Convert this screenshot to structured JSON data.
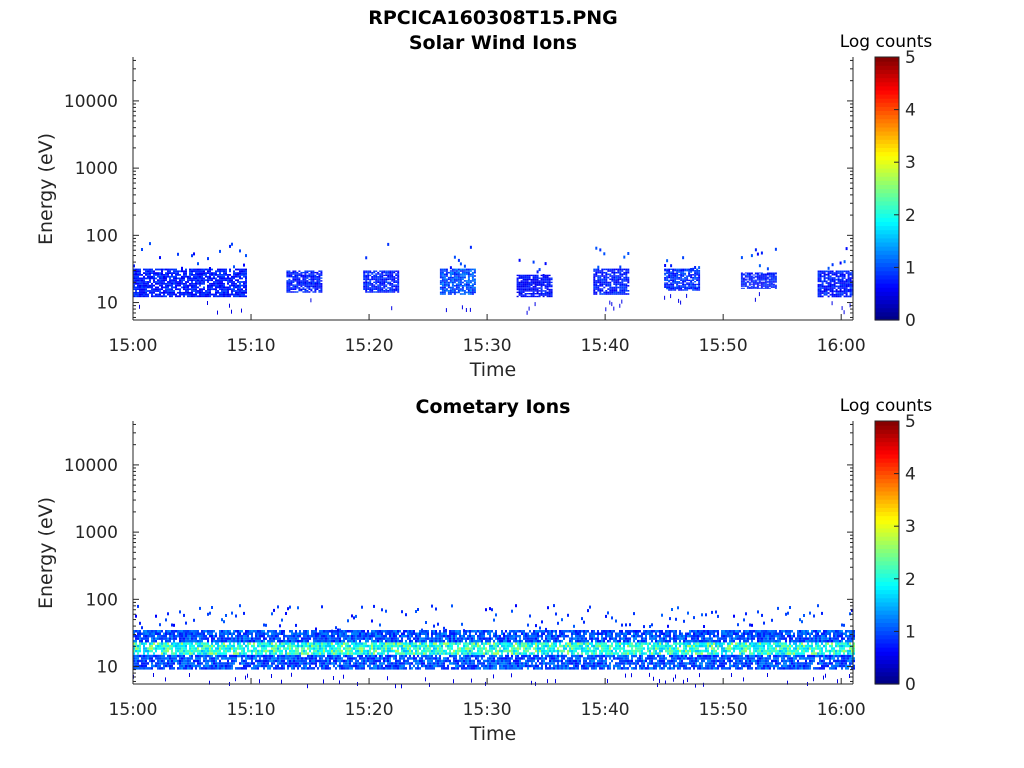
{
  "figure_title": "RPCICA160308T15.PNG",
  "chart_data": [
    {
      "type": "heatmap",
      "title": "Solar Wind Ions",
      "xlabel": "Time",
      "ylabel": "Energy (eV)",
      "x_ticks": [
        "15:00",
        "15:10",
        "15:20",
        "15:30",
        "15:40",
        "15:50",
        "16:00"
      ],
      "xlim": [
        "15:00",
        "16:01"
      ],
      "y_ticks": [
        10,
        100,
        1000,
        10000
      ],
      "y_tick_labels": [
        "10",
        "100",
        "1000",
        "10000"
      ],
      "ylim": [
        5.5,
        45000
      ],
      "yscale": "log",
      "colorbar": {
        "label": "Log counts",
        "range": [
          0,
          5
        ],
        "ticks": [
          "0",
          "1",
          "2",
          "3",
          "4",
          "5"
        ],
        "colormap": "jet"
      },
      "bursts": [
        {
          "start": "15:00",
          "end": "15:09.5",
          "energy_range_eV": [
            12,
            32
          ],
          "level": 0.9,
          "sparse_top_eV": 80
        },
        {
          "start": "15:13",
          "end": "15:16",
          "energy_range_eV": [
            14,
            30
          ],
          "level": 0.9,
          "sparse_top_eV": 0
        },
        {
          "start": "15:19.5",
          "end": "15:22.5",
          "energy_range_eV": [
            14,
            30
          ],
          "level": 0.9,
          "sparse_top_eV": 80
        },
        {
          "start": "15:26",
          "end": "15:29",
          "energy_range_eV": [
            13,
            32
          ],
          "level": 1.2,
          "sparse_top_eV": 80
        },
        {
          "start": "15:32.5",
          "end": "15:35.5",
          "energy_range_eV": [
            12,
            26
          ],
          "level": 0.8,
          "sparse_top_eV": 50
        },
        {
          "start": "15:39",
          "end": "15:42",
          "energy_range_eV": [
            13,
            32
          ],
          "level": 0.9,
          "sparse_top_eV": 70
        },
        {
          "start": "15:45",
          "end": "15:48",
          "energy_range_eV": [
            15,
            32
          ],
          "level": 1.0,
          "sparse_top_eV": 65
        },
        {
          "start": "15:51.5",
          "end": "15:54.5",
          "energy_range_eV": [
            16,
            28
          ],
          "level": 0.9,
          "sparse_top_eV": 70
        },
        {
          "start": "15:58",
          "end": "16:01",
          "energy_range_eV": [
            12,
            30
          ],
          "level": 0.9,
          "sparse_top_eV": 80
        }
      ]
    },
    {
      "type": "heatmap",
      "title": "Cometary Ions",
      "xlabel": "Time",
      "ylabel": "Energy (eV)",
      "x_ticks": [
        "15:00",
        "15:10",
        "15:20",
        "15:30",
        "15:40",
        "15:50",
        "16:00"
      ],
      "xlim": [
        "15:00",
        "16:01"
      ],
      "y_ticks": [
        10,
        100,
        1000,
        10000
      ],
      "y_tick_labels": [
        "10",
        "100",
        "1000",
        "10000"
      ],
      "ylim": [
        5.5,
        45000
      ],
      "yscale": "log",
      "colorbar": {
        "label": "Log counts",
        "range": [
          0,
          5
        ],
        "ticks": [
          "0",
          "1",
          "2",
          "3",
          "4",
          "5"
        ],
        "colormap": "jet"
      },
      "continuous_band": {
        "start": "15:00",
        "end": "16:01",
        "energy_range_eV": [
          9,
          35
        ],
        "core_eV": [
          14,
          24
        ],
        "peak_level": 2.7,
        "sparse_top_eV": 85
      }
    }
  ]
}
